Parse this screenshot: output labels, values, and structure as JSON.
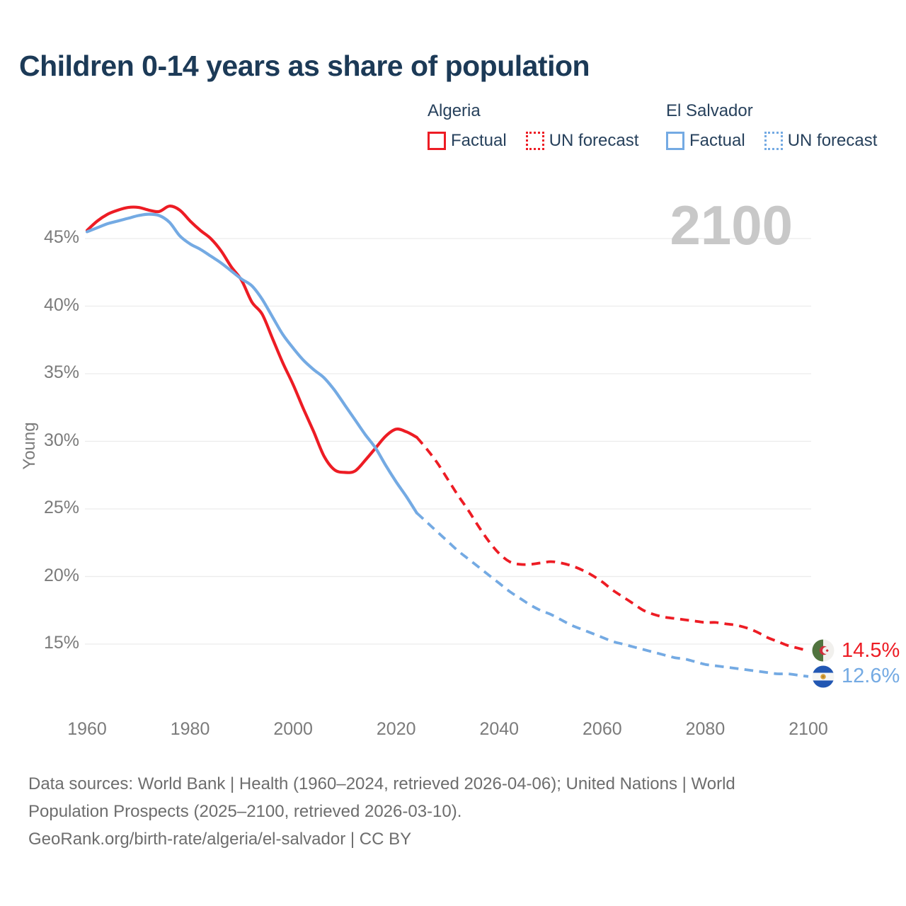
{
  "title": "Children 0-14 years as share of population",
  "watermark": "2100",
  "legend": {
    "algeria": {
      "header": "Algeria",
      "factual": "Factual",
      "forecast": "UN forecast"
    },
    "el_salvador": {
      "header": "El Salvador",
      "factual": "Factual",
      "forecast": "UN forecast"
    }
  },
  "colors": {
    "algeria": "#ed1c24",
    "el_salvador": "#74aae3",
    "title_text": "#1c3a57",
    "axis_text": "#7b7b7b",
    "gridline": "#ececec",
    "watermark": "#c8c8c8"
  },
  "end_labels": {
    "algeria_value": "14.5%",
    "el_salvador_value": "12.6%",
    "algeria_flag": "algeria-flag-icon",
    "el_salvador_flag": "el-salvador-flag-icon"
  },
  "sources": {
    "line1": "Data sources: World Bank | Health (1960–2024, retrieved 2026-04-06); United Nations | World",
    "line2": "Population Prospects (2025–2100, retrieved 2026-03-10).",
    "line3": "GeoRank.org/birth-rate/algeria/el-salvador | CC BY"
  },
  "chart_data": {
    "type": "line",
    "title": "Children 0-14 years as share of population",
    "xlabel": "",
    "ylabel": "Young",
    "x_ticks": [
      1960,
      1980,
      2000,
      2020,
      2040,
      2060,
      2080,
      2100
    ],
    "y_ticks": [
      45,
      40,
      35,
      30,
      25,
      20,
      15
    ],
    "y_tick_labels": [
      "45%",
      "40%",
      "35%",
      "30%",
      "25%",
      "20%",
      "15%"
    ],
    "xlim": [
      1960,
      2100
    ],
    "ylim": [
      12,
      48.5
    ],
    "grid": "horizontal",
    "legend_position": "top",
    "series": [
      {
        "name": "Algeria Factual",
        "color": "#ed1c24",
        "line": "solid",
        "points": [
          [
            1960,
            45.6
          ],
          [
            1962,
            46.3
          ],
          [
            1964,
            46.8
          ],
          [
            1966,
            47.1
          ],
          [
            1968,
            47.3
          ],
          [
            1970,
            47.3
          ],
          [
            1972,
            47.1
          ],
          [
            1974,
            47.0
          ],
          [
            1976,
            47.4
          ],
          [
            1978,
            47.1
          ],
          [
            1980,
            46.3
          ],
          [
            1982,
            45.6
          ],
          [
            1984,
            45.0
          ],
          [
            1986,
            44.1
          ],
          [
            1988,
            42.9
          ],
          [
            1990,
            41.9
          ],
          [
            1992,
            40.3
          ],
          [
            1994,
            39.4
          ],
          [
            1996,
            37.6
          ],
          [
            1998,
            35.8
          ],
          [
            2000,
            34.2
          ],
          [
            2002,
            32.4
          ],
          [
            2004,
            30.7
          ],
          [
            2006,
            28.9
          ],
          [
            2008,
            27.9
          ],
          [
            2010,
            27.7
          ],
          [
            2012,
            27.8
          ],
          [
            2014,
            28.6
          ],
          [
            2016,
            29.5
          ],
          [
            2018,
            30.4
          ],
          [
            2020,
            30.9
          ],
          [
            2022,
            30.7
          ],
          [
            2024,
            30.3
          ]
        ]
      },
      {
        "name": "Algeria UN forecast",
        "color": "#ed1c24",
        "line": "dashed",
        "points": [
          [
            2024,
            30.3
          ],
          [
            2026,
            29.4
          ],
          [
            2028,
            28.4
          ],
          [
            2030,
            27.2
          ],
          [
            2032,
            26.0
          ],
          [
            2034,
            24.9
          ],
          [
            2036,
            23.7
          ],
          [
            2038,
            22.6
          ],
          [
            2040,
            21.7
          ],
          [
            2042,
            21.1
          ],
          [
            2044,
            20.9
          ],
          [
            2046,
            20.9
          ],
          [
            2048,
            21.0
          ],
          [
            2050,
            21.1
          ],
          [
            2052,
            21.0
          ],
          [
            2054,
            20.8
          ],
          [
            2056,
            20.5
          ],
          [
            2058,
            20.1
          ],
          [
            2060,
            19.6
          ],
          [
            2062,
            19.0
          ],
          [
            2064,
            18.5
          ],
          [
            2066,
            18.0
          ],
          [
            2068,
            17.5
          ],
          [
            2070,
            17.2
          ],
          [
            2072,
            17.0
          ],
          [
            2074,
            16.9
          ],
          [
            2076,
            16.8
          ],
          [
            2078,
            16.7
          ],
          [
            2080,
            16.6
          ],
          [
            2082,
            16.6
          ],
          [
            2084,
            16.5
          ],
          [
            2086,
            16.4
          ],
          [
            2088,
            16.2
          ],
          [
            2090,
            15.9
          ],
          [
            2092,
            15.5
          ],
          [
            2094,
            15.2
          ],
          [
            2096,
            14.9
          ],
          [
            2098,
            14.7
          ],
          [
            2100,
            14.5
          ]
        ]
      },
      {
        "name": "El Salvador Factual",
        "color": "#74aae3",
        "line": "solid",
        "points": [
          [
            1960,
            45.5
          ],
          [
            1962,
            45.8
          ],
          [
            1964,
            46.1
          ],
          [
            1966,
            46.3
          ],
          [
            1968,
            46.5
          ],
          [
            1970,
            46.7
          ],
          [
            1972,
            46.8
          ],
          [
            1974,
            46.7
          ],
          [
            1976,
            46.2
          ],
          [
            1978,
            45.2
          ],
          [
            1980,
            44.6
          ],
          [
            1982,
            44.2
          ],
          [
            1984,
            43.7
          ],
          [
            1986,
            43.2
          ],
          [
            1988,
            42.6
          ],
          [
            1990,
            42.0
          ],
          [
            1992,
            41.5
          ],
          [
            1994,
            40.5
          ],
          [
            1996,
            39.2
          ],
          [
            1998,
            37.9
          ],
          [
            2000,
            36.9
          ],
          [
            2002,
            36.0
          ],
          [
            2004,
            35.3
          ],
          [
            2006,
            34.7
          ],
          [
            2008,
            33.8
          ],
          [
            2010,
            32.7
          ],
          [
            2012,
            31.6
          ],
          [
            2014,
            30.5
          ],
          [
            2016,
            29.5
          ],
          [
            2018,
            28.2
          ],
          [
            2020,
            27.0
          ],
          [
            2022,
            25.9
          ],
          [
            2024,
            24.7
          ]
        ]
      },
      {
        "name": "El Salvador UN forecast",
        "color": "#74aae3",
        "line": "dashed",
        "points": [
          [
            2024,
            24.7
          ],
          [
            2026,
            24.0
          ],
          [
            2028,
            23.3
          ],
          [
            2030,
            22.6
          ],
          [
            2032,
            21.9
          ],
          [
            2034,
            21.3
          ],
          [
            2036,
            20.7
          ],
          [
            2038,
            20.1
          ],
          [
            2040,
            19.5
          ],
          [
            2042,
            18.9
          ],
          [
            2044,
            18.4
          ],
          [
            2046,
            17.9
          ],
          [
            2048,
            17.5
          ],
          [
            2050,
            17.2
          ],
          [
            2052,
            16.8
          ],
          [
            2054,
            16.4
          ],
          [
            2056,
            16.1
          ],
          [
            2058,
            15.8
          ],
          [
            2060,
            15.5
          ],
          [
            2062,
            15.2
          ],
          [
            2064,
            15.0
          ],
          [
            2066,
            14.8
          ],
          [
            2068,
            14.6
          ],
          [
            2070,
            14.4
          ],
          [
            2072,
            14.2
          ],
          [
            2074,
            14.0
          ],
          [
            2076,
            13.9
          ],
          [
            2078,
            13.7
          ],
          [
            2080,
            13.5
          ],
          [
            2082,
            13.4
          ],
          [
            2084,
            13.3
          ],
          [
            2086,
            13.2
          ],
          [
            2088,
            13.1
          ],
          [
            2090,
            13.0
          ],
          [
            2092,
            12.9
          ],
          [
            2094,
            12.8
          ],
          [
            2096,
            12.8
          ],
          [
            2098,
            12.7
          ],
          [
            2100,
            12.6
          ]
        ]
      }
    ],
    "end_annotations": [
      {
        "series": "Algeria",
        "year": 2100,
        "value": 14.5,
        "label": "14.5%"
      },
      {
        "series": "El Salvador",
        "year": 2100,
        "value": 12.6,
        "label": "12.6%"
      }
    ]
  }
}
